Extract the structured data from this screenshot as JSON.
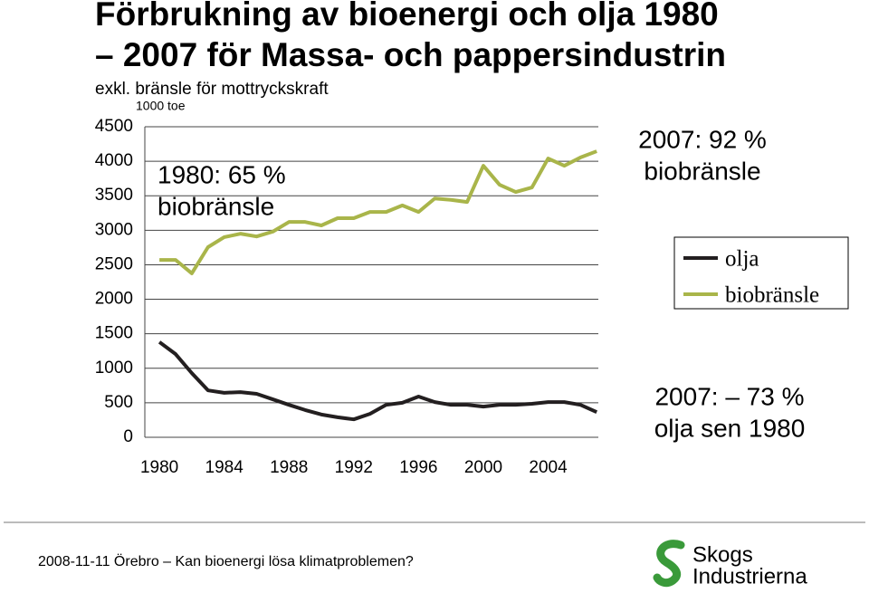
{
  "chart_data": {
    "type": "line",
    "title_lines": [
      "Förbrukning av bioenergi och olja 1980",
      "– 2007 för Massa- och pappersindustrin"
    ],
    "subtitle": "exkl. bränsle för mottryckskraft",
    "y_label": "1000 toe",
    "x": [
      1980,
      1981,
      1982,
      1983,
      1984,
      1985,
      1986,
      1987,
      1988,
      1989,
      1990,
      1991,
      1992,
      1993,
      1994,
      1995,
      1996,
      1997,
      1998,
      1999,
      2000,
      2001,
      2002,
      2003,
      2004,
      2005,
      2006,
      2007
    ],
    "series": [
      {
        "name": "olja",
        "color": "#231f20",
        "values": [
          1380,
          1205,
          930,
          680,
          645,
          655,
          630,
          550,
          470,
          395,
          330,
          290,
          260,
          340,
          470,
          500,
          590,
          510,
          470,
          470,
          445,
          470,
          470,
          485,
          510,
          510,
          470,
          365
        ]
      },
      {
        "name": "biobränsle",
        "color": "#a9b54a",
        "values": [
          2570,
          2570,
          2375,
          2755,
          2900,
          2950,
          2910,
          2980,
          3120,
          3120,
          3070,
          3175,
          3175,
          3265,
          3265,
          3360,
          3265,
          3460,
          3440,
          3410,
          3935,
          3660,
          3555,
          3620,
          4040,
          3935,
          4055,
          4145
        ]
      }
    ],
    "xlim": [
      1979.1,
      2007.1
    ],
    "xticks": [
      1980,
      1984,
      1988,
      1992,
      1996,
      2000,
      2004
    ],
    "ylim": [
      0,
      4500
    ],
    "yticks": [
      0,
      500,
      1000,
      1500,
      2000,
      2500,
      3000,
      3500,
      4000,
      4500
    ],
    "grid": true,
    "legend": "right",
    "annotations": [
      [
        "1980: 65 %",
        "biobränsle"
      ],
      [
        "2007: 92 %",
        "biobränsle"
      ],
      [
        "2007: – 73 %",
        "olja sen 1980"
      ]
    ],
    "footer": "2008-11-11 Örebro – Kan bioenergi lösa klimatproblemen?",
    "logo": [
      "Skogs",
      "Industrierna"
    ]
  }
}
